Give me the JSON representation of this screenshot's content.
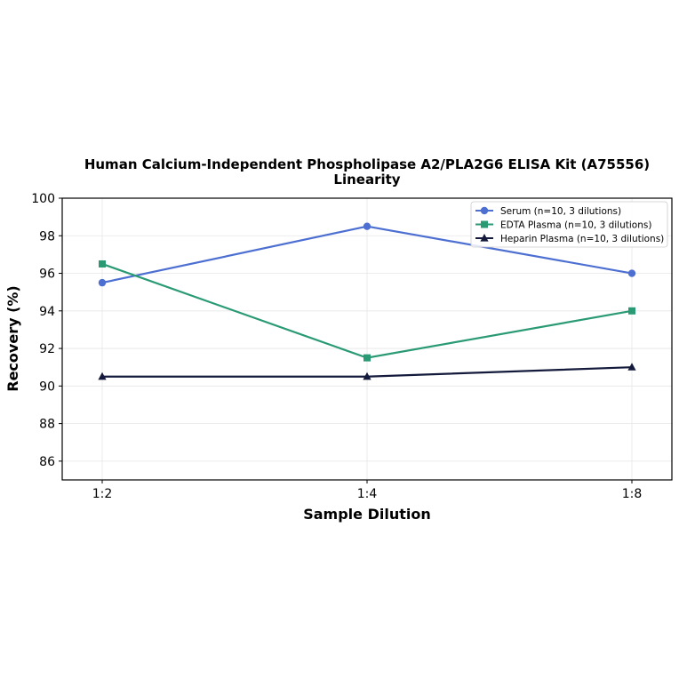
{
  "chart_data": {
    "type": "line",
    "title_line1": "Human Calcium-Independent Phospholipase A2/PLA2G6 ELISA Kit (A75556)",
    "title_line2": "Linearity",
    "xlabel": "Sample Dilution",
    "ylabel": "Recovery (%)",
    "categories": [
      "1:2",
      "1:4",
      "1:8"
    ],
    "ylim": [
      85,
      100
    ],
    "yticks": [
      86,
      88,
      90,
      92,
      94,
      96,
      98,
      100
    ],
    "grid": true,
    "legend_position": "top-right",
    "series": [
      {
        "name": "Serum (n=10, 3 dilutions)",
        "values": [
          95.5,
          98.5,
          96.0
        ],
        "color": "#4c6fd1",
        "marker": "circle"
      },
      {
        "name": "EDTA Plasma (n=10, 3 dilutions)",
        "values": [
          96.5,
          91.5,
          94.0
        ],
        "color": "#2a9a75",
        "marker": "square"
      },
      {
        "name": "Heparin Plasma (n=10, 3 dilutions)",
        "values": [
          90.5,
          90.5,
          91.0
        ],
        "color": "#141a3c",
        "marker": "triangle"
      }
    ]
  }
}
